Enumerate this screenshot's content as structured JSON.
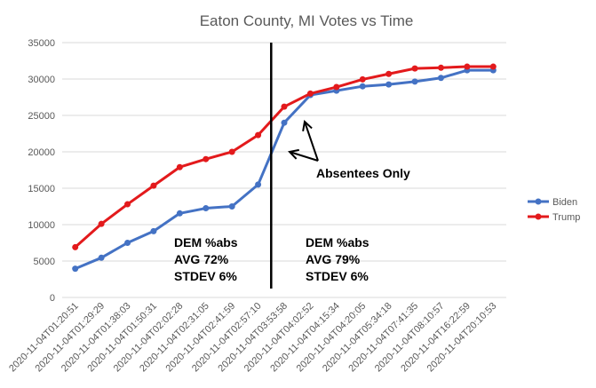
{
  "chart_data": {
    "type": "line",
    "title": "Eaton County, MI Votes vs Time",
    "xlabel": "",
    "ylabel": "",
    "ylim": [
      0,
      35000
    ],
    "yticks": [
      0,
      5000,
      10000,
      15000,
      20000,
      25000,
      30000,
      35000
    ],
    "grid": true,
    "legend_position": "right",
    "categories": [
      "2020-11-04T01:20:51",
      "2020-11-04T01:29:29",
      "2020-11-04T01:38:03",
      "2020-11-04T01:50:31",
      "2020-11-04T02:02:28",
      "2020-11-04T02:31:05",
      "2020-11-04T02:41:59",
      "2020-11-04T02:57:10",
      "2020-11-04T03:53:58",
      "2020-11-04T04:02:52",
      "2020-11-04T04:15:34",
      "2020-11-04T04:20:05",
      "2020-11-04T05:34:18",
      "2020-11-04T07:41:35",
      "2020-11-04T08:10:57",
      "2020-11-04T16:22:59",
      "2020-11-04T20:10:53"
    ],
    "series": [
      {
        "name": "Biden",
        "color": "#4472C4",
        "values": [
          3950,
          5450,
          7500,
          9100,
          11550,
          12250,
          12500,
          15500,
          24000,
          27800,
          28400,
          29000,
          29250,
          29650,
          30150,
          31200,
          31200
        ]
      },
      {
        "name": "Trump",
        "color": "#E31A1C",
        "values": [
          6900,
          10100,
          12800,
          15350,
          17900,
          19000,
          20000,
          22300,
          26200,
          28000,
          28900,
          29950,
          30700,
          31450,
          31550,
          31700,
          31700
        ]
      }
    ],
    "vertical_marker_after_category": "2020-11-04T02:57:10",
    "annotations": {
      "arrow_label": "Absentees Only",
      "left_block": [
        "DEM %abs",
        "AVG 72%",
        "STDEV 6%"
      ],
      "right_block": [
        "DEM %abs",
        "AVG 79%",
        "STDEV 6%"
      ]
    }
  }
}
